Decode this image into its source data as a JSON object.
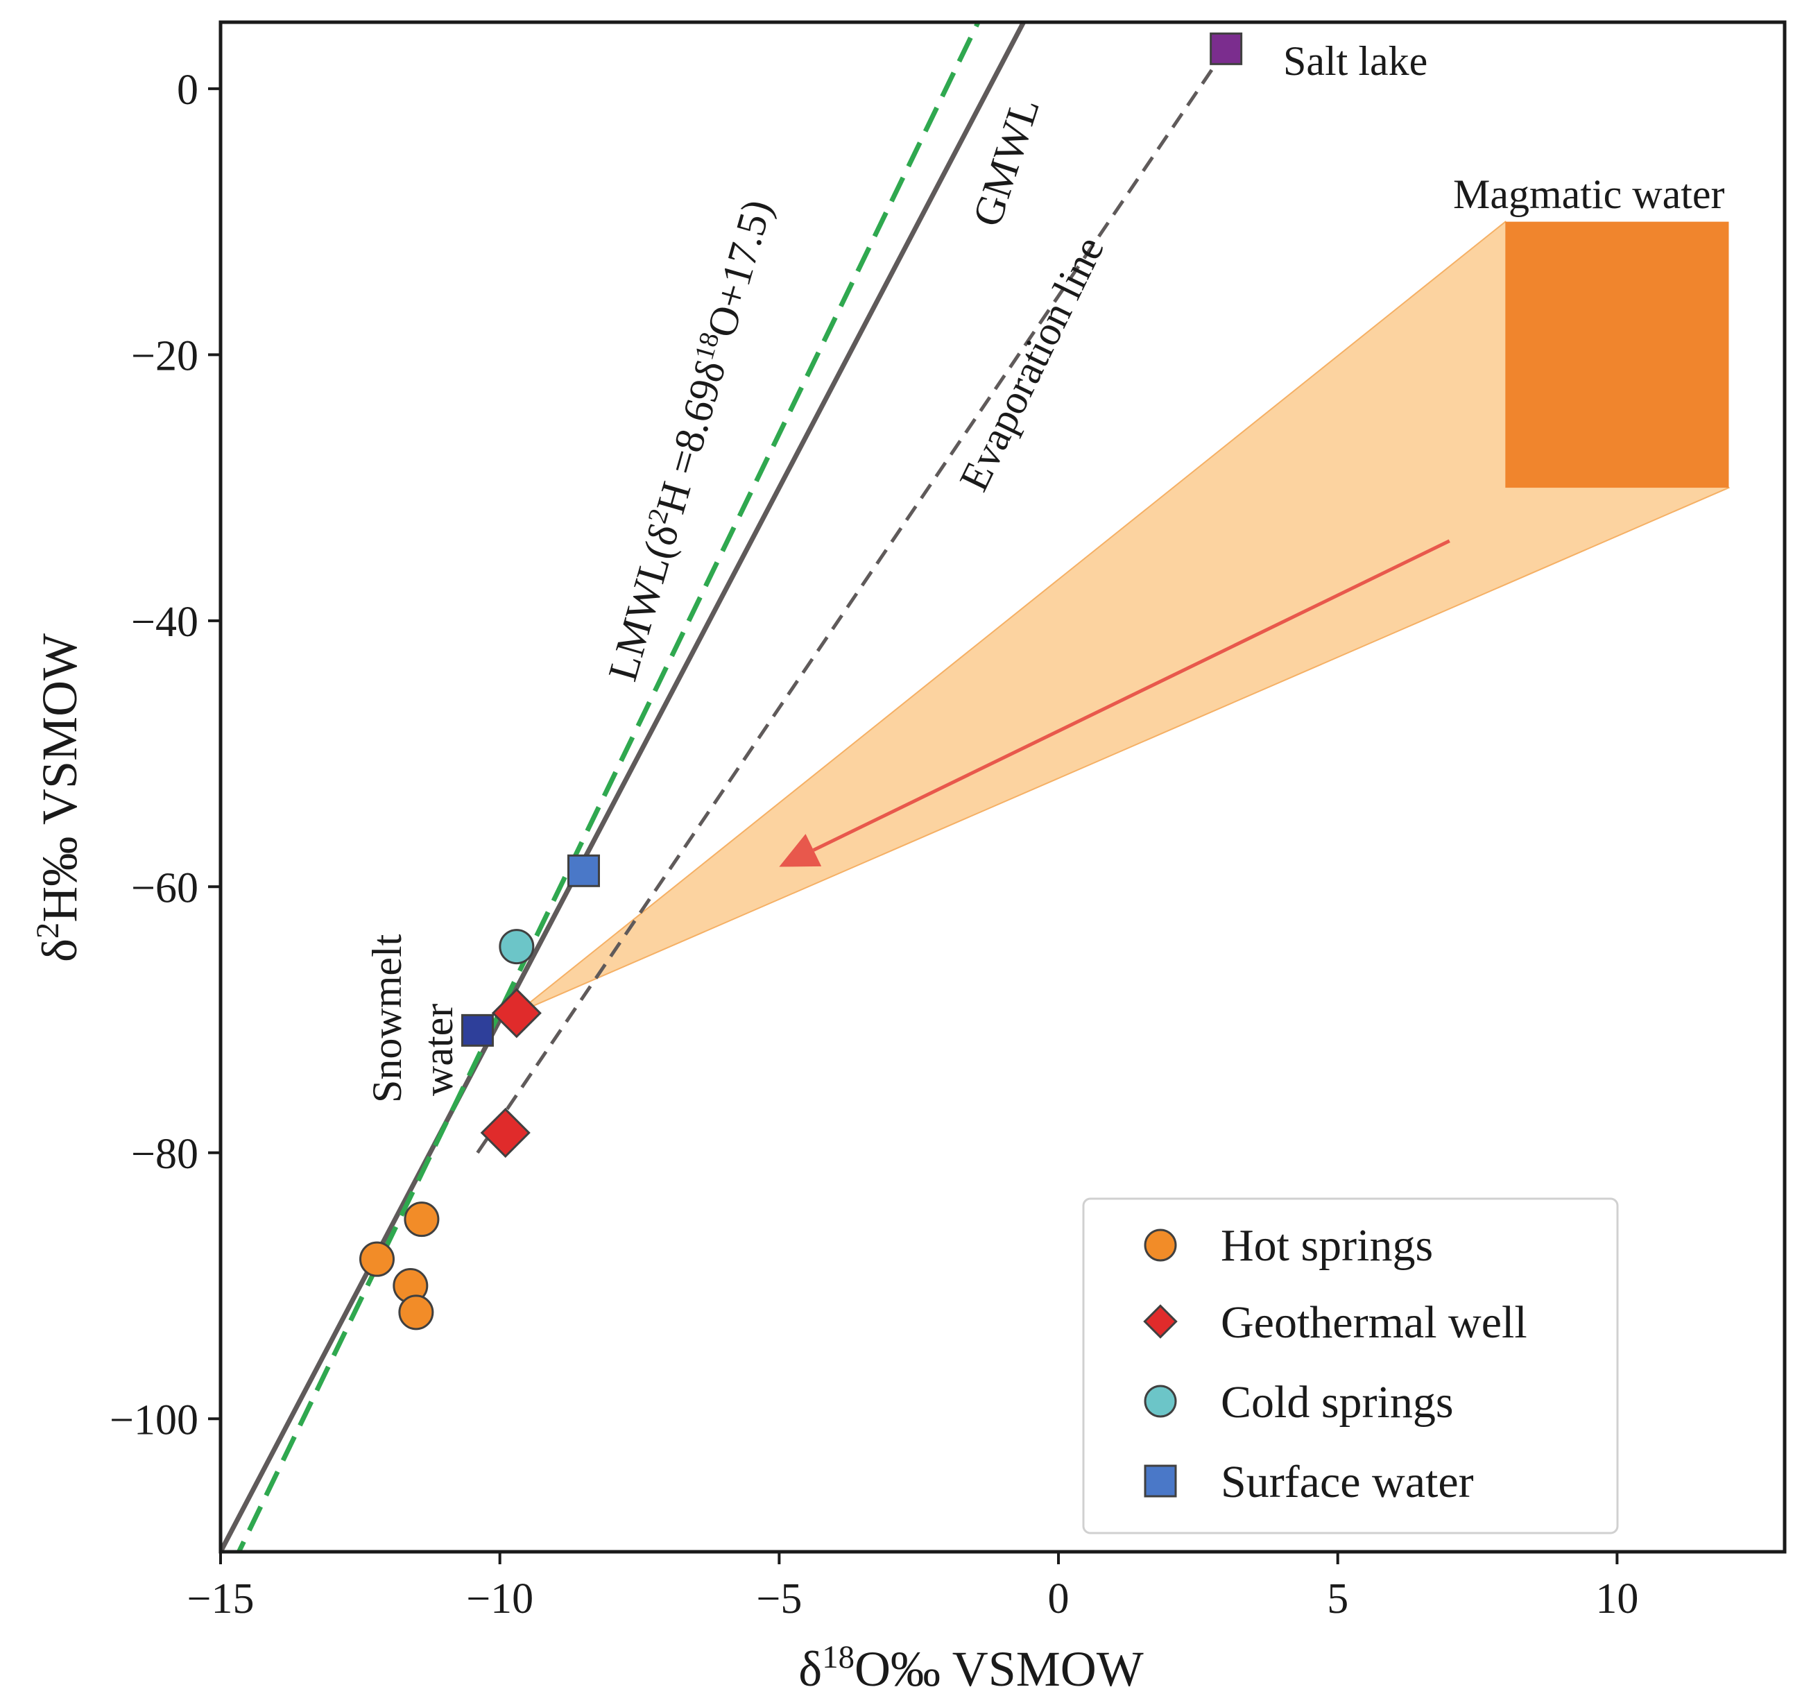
{
  "chart_data": {
    "type": "scatter",
    "xlabel": "δ18O‰ VSMOW",
    "ylabel": "δ2H‰ VSMOW",
    "xlim": [
      -15,
      13
    ],
    "ylim": [
      -110,
      5
    ],
    "xticks": [
      -15,
      -10,
      -5,
      0,
      5,
      10
    ],
    "yticks": [
      0,
      -20,
      -40,
      -60,
      -80,
      -100
    ],
    "xtick_labels": [
      "−15",
      "−10",
      "−5",
      "0",
      "5",
      "10"
    ],
    "ytick_labels": [
      "0",
      "−20",
      "−40",
      "−60",
      "−80",
      "−100"
    ],
    "series": [
      {
        "name": "Hot springs",
        "marker": "circle",
        "color": "#f28c28",
        "x": [
          -12.2,
          -11.6,
          -11.5,
          -11.4
        ],
        "y": [
          -88,
          -90,
          -92,
          -85
        ]
      },
      {
        "name": "Geothermal well",
        "marker": "diamond",
        "color": "#e02b2b",
        "x": [
          -9.7,
          -9.9
        ],
        "y": [
          -69.5,
          -78.5
        ]
      },
      {
        "name": "Cold springs",
        "marker": "circle",
        "color": "#6cc5c8",
        "x": [
          -9.7
        ],
        "y": [
          -64.5
        ]
      },
      {
        "name": "Surface water",
        "marker": "square",
        "color": "#4a78c8",
        "x": [
          -8.5
        ],
        "y": [
          -58.8
        ]
      }
    ],
    "special_points": [
      {
        "name": "snowmelt",
        "marker": "square",
        "color": "#2e3f9a",
        "x": [
          -10.4
        ],
        "y": [
          -70.8
        ]
      },
      {
        "name": "salt-lake",
        "marker": "square",
        "color": "#7b2d8e",
        "x": [
          3.0
        ],
        "y": [
          3.0
        ]
      }
    ],
    "lines": [
      {
        "name": "GMWL",
        "slope": 8,
        "intercept": 10,
        "style": "solid",
        "color": "#5f5a5a"
      },
      {
        "name": "LMWL",
        "slope": 8.69,
        "intercept": 17.5,
        "style": "dashed",
        "color": "#2fa84f"
      },
      {
        "name": "Evaporation line",
        "from": [
          -10.4,
          -80
        ],
        "to": [
          3.0,
          3.0
        ],
        "style": "dashed",
        "color": "#5f5a5a"
      }
    ],
    "magmatic_box": {
      "x": [
        8,
        12
      ],
      "y": [
        -30,
        -10
      ],
      "color": "#f0852d"
    },
    "mixing_fan": {
      "apex": [
        -9.7,
        -69.5
      ],
      "to_top": [
        8,
        -10
      ],
      "to_bottom": [
        12,
        -30
      ],
      "color": "#fcd3a0"
    },
    "arrow": {
      "from": [
        7,
        -34
      ],
      "to": [
        -5,
        -58.5
      ],
      "color": "#e8584c"
    },
    "annotations": {
      "gmwl": "GMWL",
      "lmwl": "LMWL(δ2H =8.69δ18O+17.5)",
      "evaporation": "Evaporation line",
      "magmatic": "Magmatic water",
      "salt_lake": "Salt lake",
      "snowmelt_line1": "Snowmelt",
      "snowmelt_line2": "water"
    },
    "legend": {
      "position": "bottom-right",
      "entries": [
        "Hot springs",
        "Geothermal well",
        "Cold springs",
        "Surface water"
      ]
    }
  }
}
